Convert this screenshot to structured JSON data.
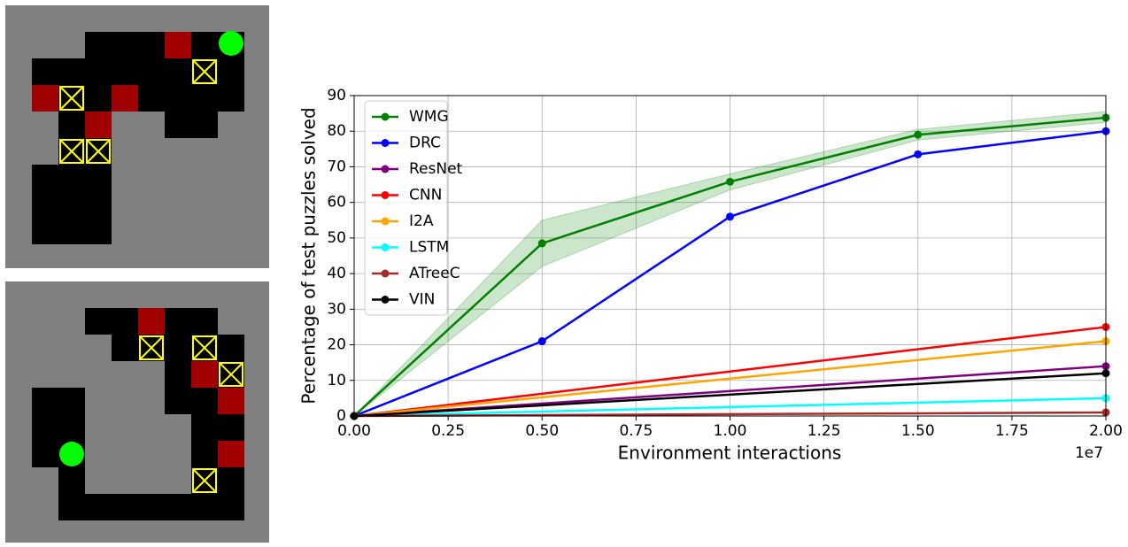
{
  "chart_data": {
    "type": "line",
    "xlabel": "Environment interactions",
    "ylabel": "Percentage of test puzzles solved",
    "x_offset_label": "1e7",
    "xlim": [
      0,
      20000000
    ],
    "ylim": [
      0,
      90
    ],
    "xticks": [
      {
        "value": 0,
        "label": "0.00"
      },
      {
        "value": 2500000,
        "label": "0.25"
      },
      {
        "value": 5000000,
        "label": "0.50"
      },
      {
        "value": 7500000,
        "label": "0.75"
      },
      {
        "value": 10000000,
        "label": "1.00"
      },
      {
        "value": 12500000,
        "label": "1.25"
      },
      {
        "value": 15000000,
        "label": "1.50"
      },
      {
        "value": 17500000,
        "label": "1.75"
      },
      {
        "value": 20000000,
        "label": "2.00"
      }
    ],
    "yticks": [
      0,
      10,
      20,
      30,
      40,
      50,
      60,
      70,
      80,
      90
    ],
    "grid": true,
    "legend": "upper left",
    "series": [
      {
        "name": "WMG",
        "color": "#008000",
        "x": [
          0,
          5000000,
          10000000,
          15000000,
          20000000
        ],
        "values": [
          0,
          48.5,
          65.8,
          79,
          83.8
        ],
        "band_lower": [
          0,
          42,
          63.5,
          77.5,
          82.5
        ],
        "band_upper": [
          0,
          55,
          68,
          80.5,
          85.5
        ]
      },
      {
        "name": "DRC",
        "color": "#0000ff",
        "x": [
          0,
          5000000,
          10000000,
          15000000,
          20000000
        ],
        "values": [
          0,
          21,
          56,
          73.5,
          80
        ]
      },
      {
        "name": "ResNet",
        "color": "#800080",
        "x": [
          0,
          20000000
        ],
        "values": [
          0,
          14
        ]
      },
      {
        "name": "CNN",
        "color": "#ff0000",
        "x": [
          0,
          20000000
        ],
        "values": [
          0,
          25
        ]
      },
      {
        "name": "I2A",
        "color": "#ffa500",
        "x": [
          0,
          20000000
        ],
        "values": [
          0,
          21
        ]
      },
      {
        "name": "LSTM",
        "color": "#00ffff",
        "x": [
          0,
          20000000
        ],
        "values": [
          0,
          5
        ]
      },
      {
        "name": "ATreeC",
        "color": "#a52a2a",
        "x": [
          0,
          20000000
        ],
        "values": [
          0,
          1
        ]
      },
      {
        "name": "VIN",
        "color": "#000000",
        "x": [
          0,
          20000000
        ],
        "values": [
          0,
          12
        ]
      }
    ]
  }
}
